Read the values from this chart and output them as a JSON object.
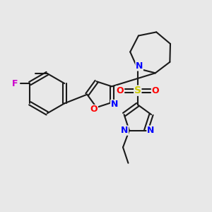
{
  "background_color": "#e8e8e8",
  "figure_size": [
    3.0,
    3.0
  ],
  "dpi": 100,
  "bond_color": "#1a1a1a",
  "bond_width": 1.5,
  "n_color": "#0000ff",
  "o_color": "#ff0000",
  "s_color": "#cccc00",
  "f_color": "#cc00cc",
  "font_size_atoms": 9,
  "font_size_small": 7.5,
  "xlim": [
    0,
    10
  ],
  "ylim": [
    0,
    10
  ]
}
